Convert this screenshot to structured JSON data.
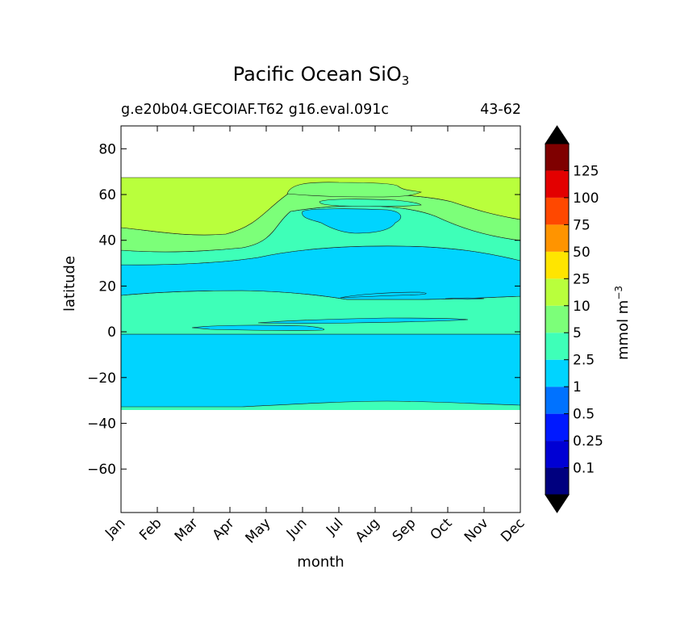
{
  "chart_data": {
    "type": "heatmap",
    "title": "Pacific Ocean SiO",
    "title_subscript": "3",
    "subtitle_left": "g.e20b04.GECOIAF.T62 g16.eval.091c",
    "subtitle_right": "43-62",
    "xlabel": "month",
    "ylabel": "latitude",
    "x_categories": [
      "Jan",
      "Feb",
      "Mar",
      "Apr",
      "May",
      "Jun",
      "Jul",
      "Aug",
      "Sep",
      "Oct",
      "Nov",
      "Dec"
    ],
    "y_ticks": [
      -60,
      -40,
      -20,
      0,
      20,
      40,
      60,
      80
    ],
    "y_tick_labels": [
      "−60",
      "−40",
      "−20",
      "0",
      "20",
      "40",
      "60",
      "80"
    ],
    "ylim": [
      -79,
      90
    ],
    "xlim": [
      0,
      11
    ],
    "data_lat_range": [
      -34,
      67
    ],
    "contour_levels": [
      0.1,
      0.25,
      0.5,
      1,
      2.5,
      5,
      10,
      25,
      50,
      75,
      100,
      125
    ],
    "colorbar": {
      "label": "mmol m",
      "label_superscript": "−3",
      "tick_labels": [
        "0.1",
        "0.25",
        "0.5",
        "1",
        "2.5",
        "5",
        "10",
        "25",
        "50",
        "75",
        "100",
        "125"
      ],
      "colors": [
        "#00007f",
        "#0000d4",
        "#0019ff",
        "#0072ff",
        "#00d4ff",
        "#3effb8",
        "#7cff79",
        "#b9ff3c",
        "#ffe500",
        "#ff9400",
        "#ff4800",
        "#e30000",
        "#7f0000"
      ],
      "under_color": "#000000",
      "over_color": "#000000"
    },
    "regions": [
      {
        "name": "band 2.5-5 south",
        "color": "#3effb8",
        "lat": [
          -34,
          -31
        ]
      },
      {
        "name": "band 1-2.5",
        "color": "#00d4ff",
        "lat": [
          -32.5,
          -1.5
        ]
      },
      {
        "name": "band 2.5-5 equatorial",
        "color": "#3effb8",
        "lat": [
          -1.5,
          18
        ]
      },
      {
        "name": "band 1-2.5 north",
        "color": "#00d4ff",
        "lat": [
          18,
          37
        ]
      },
      {
        "name": "band 2.5-5 north",
        "color": "#3effb8",
        "lat": [
          30,
          67
        ]
      },
      {
        "name": "band 5-10 north",
        "color": "#7cff79",
        "lat": [
          32,
          67
        ]
      },
      {
        "name": "band 10-25 north",
        "color": "#b9ff3c",
        "lat": [
          42,
          67
        ]
      }
    ]
  }
}
